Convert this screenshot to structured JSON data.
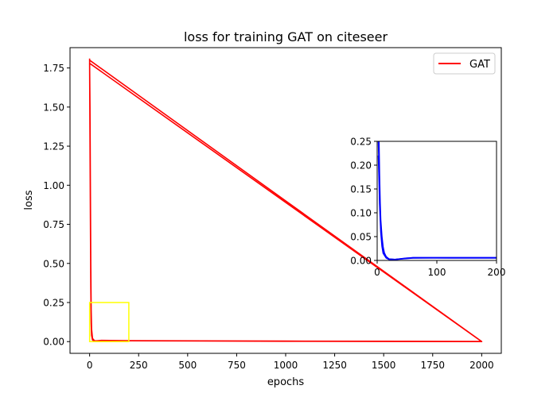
{
  "chart_data": [
    {
      "type": "line",
      "title": "loss for training GAT on citeseer",
      "xlabel": "epochs",
      "ylabel": "loss",
      "xlim": [
        -100,
        2100
      ],
      "ylim": [
        -0.075,
        1.88
      ],
      "x_ticks": [
        0,
        250,
        500,
        750,
        1000,
        1250,
        1500,
        1750,
        2000
      ],
      "x_tick_labels": [
        "0",
        "250",
        "500",
        "750",
        "1000",
        "1250",
        "1500",
        "1750",
        "2000"
      ],
      "y_ticks": [
        0.0,
        0.25,
        0.5,
        0.75,
        1.0,
        1.25,
        1.5,
        1.75
      ],
      "y_tick_labels": [
        "0.00",
        "0.25",
        "0.50",
        "0.75",
        "1.00",
        "1.25",
        "1.50",
        "1.75"
      ],
      "grid": false,
      "legend": {
        "position": "top-right",
        "entries": [
          {
            "name": "GAT",
            "color": "#ff0000"
          }
        ]
      },
      "series": [
        {
          "name": "GAT",
          "color": "#ff0000",
          "points": [
            [
              0,
              1.81
            ],
            [
              2,
              1.45
            ],
            [
              4,
              0.9
            ],
            [
              6,
              0.4
            ],
            [
              8,
              0.15
            ],
            [
              10,
              0.05
            ],
            [
              15,
              0.01
            ],
            [
              25,
              0.003
            ],
            [
              60,
              0.008
            ],
            [
              200,
              0.006
            ],
            [
              1000,
              0.003
            ],
            [
              2000,
              0.0
            ],
            [
              0,
              1.8
            ],
            [
              2,
              1.5
            ],
            [
              4,
              1.0
            ],
            [
              6,
              0.5
            ],
            [
              8,
              0.2
            ],
            [
              10,
              0.08
            ],
            [
              15,
              0.02
            ],
            [
              25,
              0.005
            ],
            [
              60,
              0.007
            ],
            [
              200,
              0.005
            ],
            [
              1000,
              0.002
            ],
            [
              2000,
              0.0
            ],
            [
              0,
              1.78
            ],
            [
              2,
              1.3
            ],
            [
              4,
              0.8
            ],
            [
              6,
              0.35
            ],
            [
              8,
              0.12
            ],
            [
              10,
              0.04
            ],
            [
              15,
              0.01
            ],
            [
              25,
              0.004
            ],
            [
              60,
              0.008
            ],
            [
              200,
              0.006
            ],
            [
              1000,
              0.003
            ],
            [
              2000,
              0.001
            ]
          ]
        }
      ],
      "highlight_box": {
        "x": [
          0,
          200
        ],
        "y": [
          0.0,
          0.25
        ],
        "color": "#ffff00"
      }
    },
    {
      "type": "line",
      "xlim": [
        0,
        200
      ],
      "ylim": [
        0.0,
        0.25
      ],
      "x_ticks": [
        0,
        100,
        200
      ],
      "x_tick_labels": [
        "0",
        "100",
        "200"
      ],
      "y_ticks": [
        0.0,
        0.05,
        0.1,
        0.15,
        0.2,
        0.25
      ],
      "y_tick_labels": [
        "0.00",
        "0.05",
        "0.10",
        "0.15",
        "0.20",
        "0.25"
      ],
      "grid": false,
      "series": [
        {
          "color": "#0000ff",
          "runs": [
            [
              [
                2,
                0.25
              ],
              [
                3,
                0.2
              ],
              [
                4,
                0.14
              ],
              [
                5,
                0.1
              ],
              [
                6,
                0.07
              ],
              [
                8,
                0.04
              ],
              [
                10,
                0.022
              ],
              [
                12,
                0.012
              ],
              [
                15,
                0.006
              ],
              [
                20,
                0.003
              ],
              [
                30,
                0.002
              ],
              [
                40,
                0.003
              ],
              [
                50,
                0.004
              ],
              [
                60,
                0.005
              ],
              [
                80,
                0.0052
              ],
              [
                120,
                0.0055
              ],
              [
                160,
                0.0055
              ],
              [
                200,
                0.0055
              ]
            ],
            [
              [
                3,
                0.25
              ],
              [
                4,
                0.18
              ],
              [
                5,
                0.12
              ],
              [
                6,
                0.085
              ],
              [
                8,
                0.05
              ],
              [
                10,
                0.028
              ],
              [
                12,
                0.016
              ],
              [
                15,
                0.008
              ],
              [
                20,
                0.003
              ],
              [
                30,
                0.002
              ],
              [
                45,
                0.004
              ],
              [
                60,
                0.006
              ],
              [
                80,
                0.006
              ],
              [
                120,
                0.006
              ],
              [
                160,
                0.006
              ],
              [
                200,
                0.006
              ]
            ],
            [
              [
                2,
                0.22
              ],
              [
                3,
                0.17
              ],
              [
                4,
                0.12
              ],
              [
                6,
                0.06
              ],
              [
                8,
                0.03
              ],
              [
                10,
                0.015
              ],
              [
                15,
                0.005
              ],
              [
                20,
                0.002
              ],
              [
                30,
                0.002
              ],
              [
                50,
                0.005
              ],
              [
                70,
                0.0055
              ],
              [
                120,
                0.005
              ],
              [
                200,
                0.005
              ]
            ]
          ]
        }
      ]
    }
  ]
}
